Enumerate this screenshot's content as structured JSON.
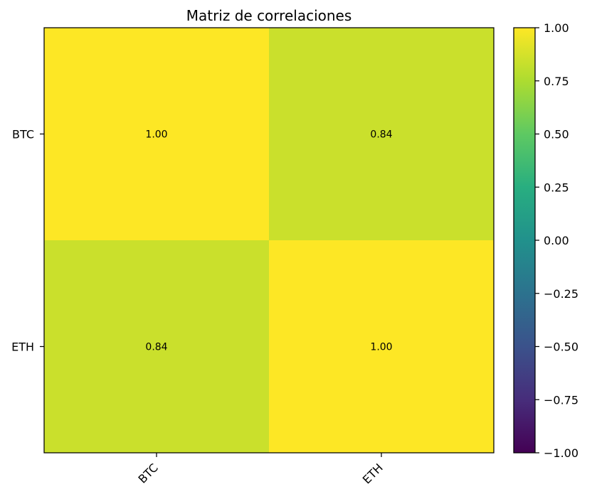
{
  "chart_data": {
    "type": "heatmap",
    "title": "Matriz de correlaciones",
    "x_categories": [
      "BTC",
      "ETH"
    ],
    "y_categories": [
      "BTC",
      "ETH"
    ],
    "values": [
      [
        1.0,
        0.84
      ],
      [
        0.84,
        1.0
      ]
    ],
    "cell_labels": [
      [
        "1.00",
        "0.84"
      ],
      [
        "0.84",
        "1.00"
      ]
    ],
    "colormap": "viridis",
    "vmin": -1.0,
    "vmax": 1.0,
    "colorbar_ticks": [
      1.0,
      0.75,
      0.5,
      0.25,
      0.0,
      -0.25,
      -0.5,
      -0.75,
      -1.0
    ],
    "colorbar_tick_labels": [
      "1.00",
      "0.75",
      "0.50",
      "0.25",
      "0.00",
      "−0.25",
      "−0.50",
      "−0.75",
      "−1.00"
    ],
    "x_tick_rotation_deg": 45
  }
}
